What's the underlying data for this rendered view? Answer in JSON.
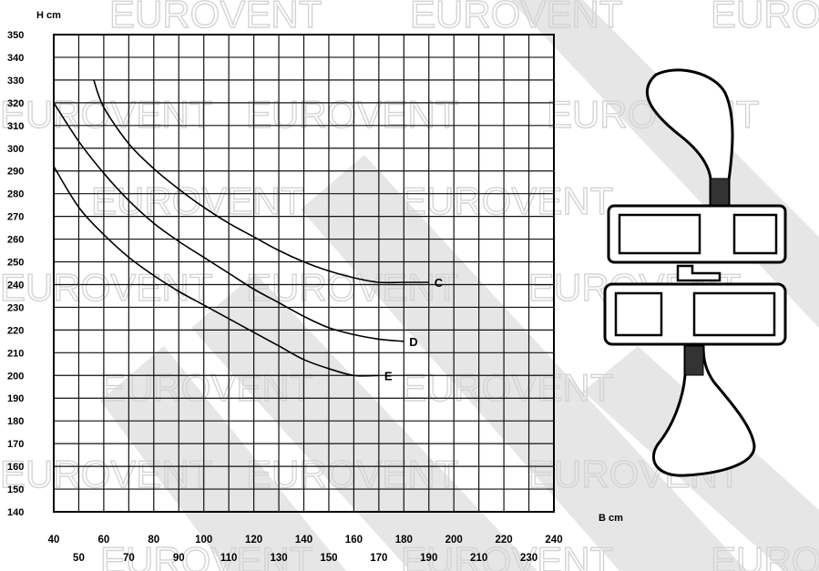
{
  "watermark": {
    "text": "EUROVENT",
    "color": "#d4d4d4",
    "stripe_color": "#e6e6e6"
  },
  "chart_data": {
    "type": "line",
    "xlabel": "B cm",
    "ylabel": "H cm",
    "xlim": [
      40,
      240
    ],
    "ylim": [
      140,
      350
    ],
    "x_ticks_upper": [
      40,
      60,
      80,
      100,
      120,
      140,
      160,
      180,
      200,
      220,
      240
    ],
    "x_ticks_lower": [
      50,
      70,
      90,
      110,
      130,
      150,
      170,
      190,
      210,
      230
    ],
    "y_ticks": [
      350,
      340,
      330,
      320,
      310,
      300,
      290,
      280,
      270,
      260,
      250,
      240,
      230,
      220,
      210,
      200,
      190,
      180,
      170,
      160,
      150,
      140
    ],
    "grid": true,
    "series": [
      {
        "name": "C",
        "x": [
          56,
          60,
          70,
          80,
          90,
          100,
          110,
          120,
          130,
          140,
          150,
          160,
          170,
          180,
          190
        ],
        "y": [
          330,
          318,
          302,
          291,
          282,
          274,
          267,
          261,
          255,
          250,
          246,
          243,
          241,
          241,
          241
        ]
      },
      {
        "name": "D",
        "x": [
          40,
          50,
          60,
          70,
          80,
          90,
          100,
          110,
          120,
          130,
          140,
          150,
          160,
          170,
          180
        ],
        "y": [
          320,
          303,
          289,
          277,
          267,
          259,
          252,
          245,
          238,
          232,
          226,
          221,
          218,
          216,
          215
        ]
      },
      {
        "name": "E",
        "x": [
          40,
          50,
          60,
          70,
          80,
          90,
          100,
          110,
          120,
          130,
          140,
          150,
          160,
          170
        ],
        "y": [
          292,
          274,
          262,
          252,
          244,
          237,
          231,
          225,
          219,
          213,
          207,
          203,
          200,
          200
        ]
      }
    ]
  }
}
